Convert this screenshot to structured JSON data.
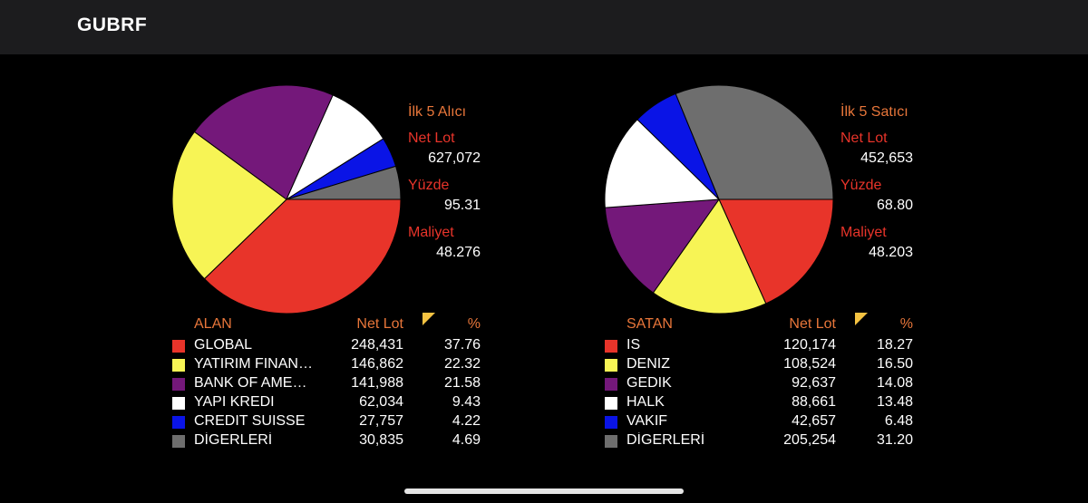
{
  "header": {
    "title": "GUBRF"
  },
  "chart_data": [
    {
      "type": "pie",
      "info": {
        "title": "İlk 5 Alıcı",
        "net_lot_label": "Net Lot",
        "net_lot_value": "627,072",
        "percent_label": "Yüzde",
        "percent_value": "95.31",
        "cost_label": "Maliyet",
        "cost_value": "48.276"
      },
      "legend_header": {
        "name": "ALAN",
        "lot": "Net Lot",
        "pct": "%"
      },
      "slices": [
        {
          "name": "GLOBAL",
          "lot": "248,431",
          "pct": "37.76",
          "value": 37.76,
          "color": "#e8342a"
        },
        {
          "name": "YATIRIM FINAN…",
          "lot": "146,862",
          "pct": "22.32",
          "value": 22.32,
          "color": "#f7f455"
        },
        {
          "name": "BANK OF AME…",
          "lot": "141,988",
          "pct": "21.58",
          "value": 21.58,
          "color": "#74187a"
        },
        {
          "name": "YAPI KREDI",
          "lot": "62,034",
          "pct": "9.43",
          "value": 9.43,
          "color": "#ffffff"
        },
        {
          "name": "CREDIT SUISSE",
          "lot": "27,757",
          "pct": "4.22",
          "value": 4.22,
          "color": "#0a14e6"
        },
        {
          "name": "DİGERLERİ",
          "lot": "30,835",
          "pct": "4.69",
          "value": 4.69,
          "color": "#6e6e6e"
        }
      ]
    },
    {
      "type": "pie",
      "info": {
        "title": "İlk 5 Satıcı",
        "net_lot_label": "Net Lot",
        "net_lot_value": "452,653",
        "percent_label": "Yüzde",
        "percent_value": "68.80",
        "cost_label": "Maliyet",
        "cost_value": "48.203"
      },
      "legend_header": {
        "name": "SATAN",
        "lot": "Net Lot",
        "pct": "%"
      },
      "slices": [
        {
          "name": "IS",
          "lot": "120,174",
          "pct": "18.27",
          "value": 18.27,
          "color": "#e8342a"
        },
        {
          "name": "DENIZ",
          "lot": "108,524",
          "pct": "16.50",
          "value": 16.5,
          "color": "#f7f455"
        },
        {
          "name": "GEDIK",
          "lot": "92,637",
          "pct": "14.08",
          "value": 14.08,
          "color": "#74187a"
        },
        {
          "name": "HALK",
          "lot": "88,661",
          "pct": "13.48",
          "value": 13.48,
          "color": "#ffffff"
        },
        {
          "name": "VAKIF",
          "lot": "42,657",
          "pct": "6.48",
          "value": 6.48,
          "color": "#0a14e6"
        },
        {
          "name": "DİGERLERİ",
          "lot": "205,254",
          "pct": "31.20",
          "value": 31.2,
          "color": "#6e6e6e"
        }
      ]
    }
  ]
}
